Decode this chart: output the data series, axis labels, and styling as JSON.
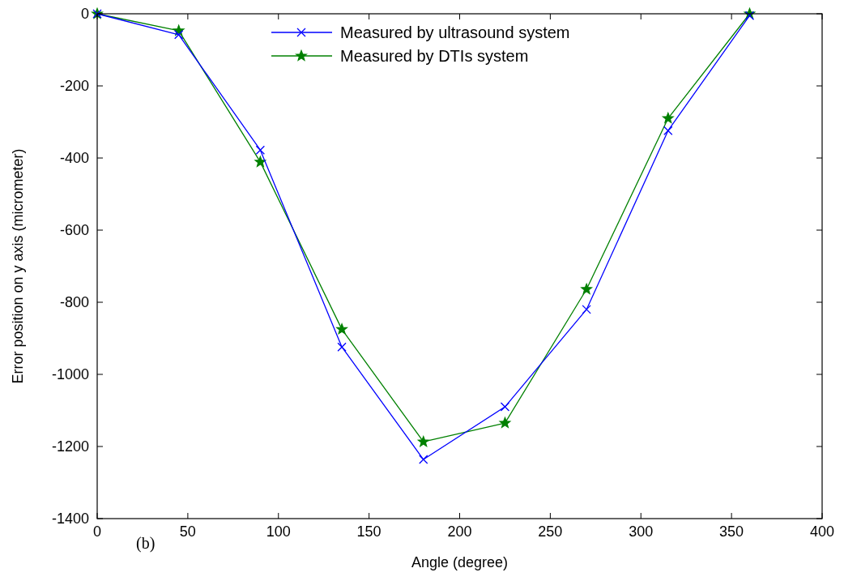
{
  "chart_data": {
    "type": "line",
    "xlabel": "Angle (degree)",
    "ylabel": "Error position on y axis (micrometer)",
    "x": [
      0,
      45,
      90,
      135,
      180,
      225,
      270,
      315,
      360
    ],
    "series": [
      {
        "name": "Measured by ultrasound system",
        "color": "#0000ff",
        "marker": "cross",
        "values": [
          0,
          -58,
          -378,
          -924,
          -1236,
          -1090,
          -820,
          -324,
          -5
        ]
      },
      {
        "name": "Measured by DTIs system",
        "color": "#008000",
        "marker": "star",
        "values": [
          0,
          -47,
          -411,
          -875,
          -1187,
          -1135,
          -764,
          -290,
          0
        ]
      }
    ],
    "xlim": [
      0,
      400
    ],
    "xticks": [
      0,
      50,
      100,
      150,
      200,
      250,
      300,
      350,
      400
    ],
    "ylim": [
      -1400,
      0
    ],
    "yticks": [
      -1400,
      -1200,
      -1000,
      -800,
      -600,
      -400,
      -200,
      0
    ],
    "grid": false,
    "legend": "top",
    "line_style": "solid",
    "annotations": [
      "(b)"
    ]
  }
}
